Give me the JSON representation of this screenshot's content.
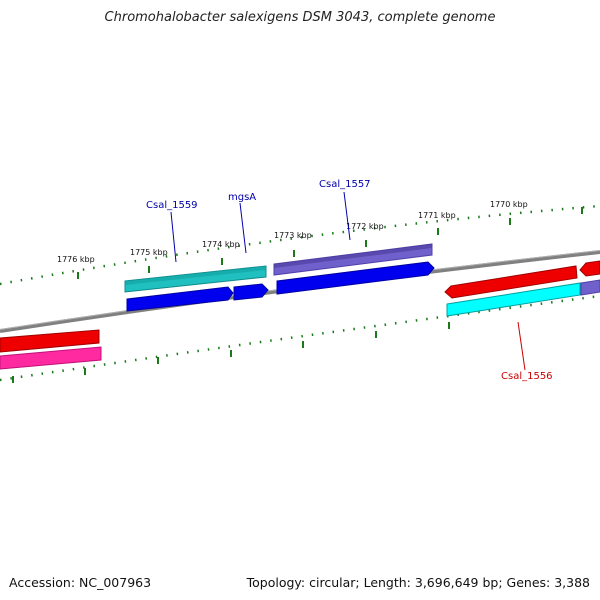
{
  "title": "Chromohalobacter salexigens DSM 3043, complete genome",
  "footer": {
    "accession": "Accession: NC_007963",
    "summary": "Topology: circular; Length: 3,696,649 bp; Genes: 3,388"
  },
  "scale": {
    "ticks": [
      {
        "label": "1776 kbp"
      },
      {
        "label": "1775 kbp"
      },
      {
        "label": "1774 kbp"
      },
      {
        "label": "1773 kbp"
      },
      {
        "label": "1772 kbp"
      },
      {
        "label": "1771 kbp"
      },
      {
        "label": "1770 kbp"
      }
    ]
  },
  "genes": {
    "csal_1559": {
      "name": "Csal_1559",
      "color": "#0000aa"
    },
    "mgsA": {
      "name": "mgsA",
      "color": "#0000aa"
    },
    "csal_1557": {
      "name": "Csal_1557",
      "color": "#0000aa"
    },
    "csal_1556": {
      "name": "Csal_1556",
      "color": "#cc0000"
    }
  },
  "colors": {
    "backbone": "#808080",
    "tick": "#1a7a1a",
    "cds_forward": "#0000ee",
    "cds_reverse": "#ee0000",
    "gene_teal": "#20c0c0",
    "gene_purple": "#7060cc",
    "gene_cyan": "#00ffff",
    "gene_pink": "#ff2aa0"
  }
}
